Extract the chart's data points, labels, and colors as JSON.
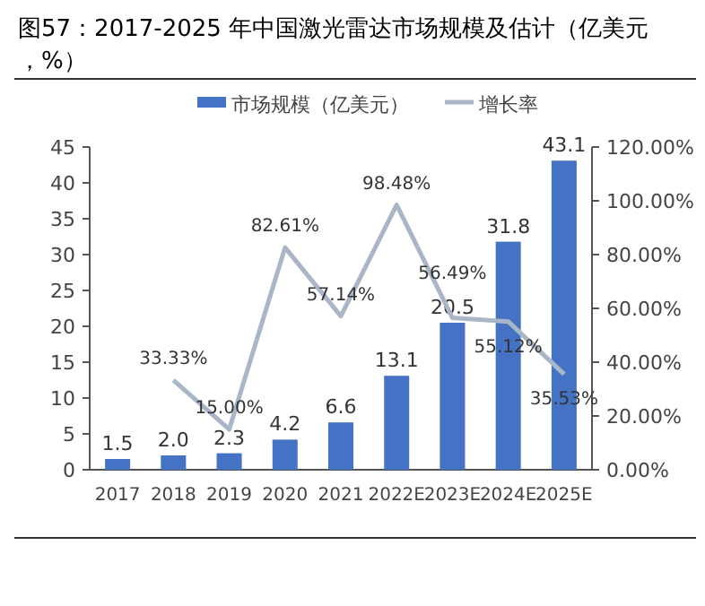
{
  "chart_data": {
    "type": "bar",
    "title": "图57：2017-2025 年中国激光雷达市场规模及估计（亿美元，%）",
    "categories": [
      "2017",
      "2018",
      "2019",
      "2020",
      "2021",
      "2022E",
      "2023E",
      "2024E",
      "2025E"
    ],
    "series": [
      {
        "name": "市场规模（亿美元）",
        "color": "#4472c4",
        "values": [
          1.5,
          2.0,
          2.3,
          4.2,
          6.6,
          13.1,
          20.5,
          31.8,
          43.1
        ],
        "value_labels": [
          "1.5",
          "2.0",
          "2.3",
          "4.2",
          "6.6",
          "13.1",
          "20.5",
          "31.8",
          "43.1"
        ]
      },
      {
        "name": "增长率",
        "type": "line",
        "axis": "y2",
        "color": "#a9b6c8",
        "values": [
          null,
          33.33,
          15.0,
          82.61,
          57.14,
          98.48,
          56.49,
          55.12,
          35.53
        ],
        "value_labels": [
          null,
          "33.33%",
          "15.00%",
          "82.61%",
          "57.14%",
          "98.48%",
          "56.49%",
          "55.12%",
          "35.53%"
        ]
      }
    ],
    "ylim": [
      0,
      45
    ],
    "yticks": [
      0,
      5,
      10,
      15,
      20,
      25,
      30,
      35,
      40,
      45
    ],
    "y2lim": [
      0,
      120
    ],
    "y2ticks": [
      {
        "value": 0,
        "label": "0.00%"
      },
      {
        "value": 20,
        "label": "20.00%"
      },
      {
        "value": 40,
        "label": "40.00%"
      },
      {
        "value": 60,
        "label": "60.00%"
      },
      {
        "value": 80,
        "label": "80.00%"
      },
      {
        "value": 100,
        "label": "100.00%"
      },
      {
        "value": 120,
        "label": "120.00%"
      }
    ],
    "legend": "top",
    "marker": "none"
  }
}
